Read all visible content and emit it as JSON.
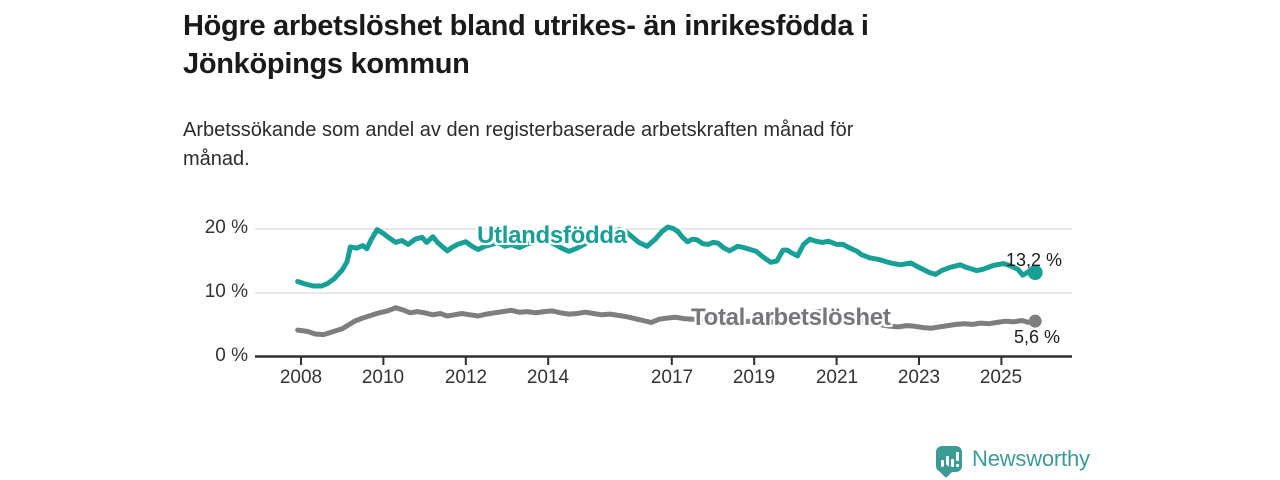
{
  "header": {
    "title_lines": [
      "Högre arbetslöshet bland utrikes- än inrikesfödda i",
      "Jönköpings kommun"
    ],
    "subtitle_lines": [
      "Arbetssökande som andel av den registerbaserade arbetskraften månad för",
      "månad."
    ]
  },
  "chart_data": {
    "type": "line",
    "title": "Högre arbetslöshet bland utrikes- än inrikesfödda i Jönköpings kommun",
    "subtitle": "Arbetssökande som andel av den registerbaserade arbetskraften månad för månad.",
    "unit": "%",
    "grid": "horizontal-only",
    "x_range_years": [
      2007.9,
      2025.9
    ],
    "y_axis": {
      "range": [
        0,
        21.5
      ],
      "ticks": [
        {
          "value": 20,
          "label": "20 %"
        },
        {
          "value": 10,
          "label": "10 %"
        },
        {
          "value": 0,
          "label": "0 %"
        }
      ]
    },
    "x_axis": {
      "ticks": [
        {
          "year": 2008,
          "label": "2008"
        },
        {
          "year": 2010,
          "label": "2010"
        },
        {
          "year": 2012,
          "label": "2012"
        },
        {
          "year": 2014,
          "label": "2014"
        },
        {
          "year": 2017,
          "label": "2017"
        },
        {
          "year": 2019,
          "label": "2019"
        },
        {
          "year": 2021,
          "label": "2021"
        },
        {
          "year": 2023,
          "label": "2023"
        },
        {
          "year": 2025,
          "label": "2025"
        }
      ]
    },
    "series": [
      {
        "name": "Total arbetslöshet",
        "color": "#7e7e7e",
        "end_value": 5.6,
        "end_label": "5,6 %",
        "points": [
          [
            2007.92,
            4.2
          ],
          [
            2008.15,
            4.0
          ],
          [
            2008.35,
            3.6
          ],
          [
            2008.55,
            3.5
          ],
          [
            2008.75,
            3.9
          ],
          [
            2009.0,
            4.4
          ],
          [
            2009.15,
            5.0
          ],
          [
            2009.3,
            5.6
          ],
          [
            2009.5,
            6.1
          ],
          [
            2009.7,
            6.5
          ],
          [
            2009.9,
            6.9
          ],
          [
            2010.1,
            7.2
          ],
          [
            2010.3,
            7.7
          ],
          [
            2010.5,
            7.3
          ],
          [
            2010.65,
            6.9
          ],
          [
            2010.82,
            7.1
          ],
          [
            2011.0,
            6.9
          ],
          [
            2011.2,
            6.6
          ],
          [
            2011.38,
            6.8
          ],
          [
            2011.55,
            6.4
          ],
          [
            2011.72,
            6.6
          ],
          [
            2011.9,
            6.8
          ],
          [
            2012.1,
            6.6
          ],
          [
            2012.3,
            6.4
          ],
          [
            2012.5,
            6.7
          ],
          [
            2012.7,
            6.9
          ],
          [
            2012.9,
            7.1
          ],
          [
            2013.1,
            7.3
          ],
          [
            2013.3,
            7.0
          ],
          [
            2013.5,
            7.1
          ],
          [
            2013.7,
            6.9
          ],
          [
            2013.9,
            7.1
          ],
          [
            2014.1,
            7.2
          ],
          [
            2014.3,
            6.9
          ],
          [
            2014.5,
            6.7
          ],
          [
            2014.7,
            6.8
          ],
          [
            2014.9,
            7.0
          ],
          [
            2015.1,
            6.8
          ],
          [
            2015.3,
            6.6
          ],
          [
            2015.5,
            6.7
          ],
          [
            2015.7,
            6.5
          ],
          [
            2015.9,
            6.3
          ],
          [
            2016.1,
            6.0
          ],
          [
            2016.3,
            5.7
          ],
          [
            2016.5,
            5.4
          ],
          [
            2016.7,
            5.9
          ],
          [
            2016.9,
            6.1
          ],
          [
            2017.1,
            6.2
          ],
          [
            2017.3,
            6.0
          ],
          [
            2017.5,
            5.9
          ],
          [
            2017.8,
            5.8
          ],
          [
            2018.0,
            5.9
          ],
          [
            2018.3,
            5.7
          ],
          [
            2018.6,
            5.5
          ],
          [
            2018.9,
            5.6
          ],
          [
            2019.2,
            5.4
          ],
          [
            2019.5,
            5.5
          ],
          [
            2019.8,
            5.7
          ],
          [
            2020.1,
            6.0
          ],
          [
            2020.4,
            6.9
          ],
          [
            2020.6,
            7.1
          ],
          [
            2020.9,
            6.8
          ],
          [
            2021.1,
            6.5
          ],
          [
            2021.4,
            6.1
          ],
          [
            2021.7,
            5.7
          ],
          [
            2021.9,
            5.3
          ],
          [
            2022.1,
            5.0
          ],
          [
            2022.3,
            4.8
          ],
          [
            2022.5,
            4.7
          ],
          [
            2022.7,
            4.9
          ],
          [
            2022.9,
            4.8
          ],
          [
            2023.1,
            4.6
          ],
          [
            2023.3,
            4.5
          ],
          [
            2023.5,
            4.7
          ],
          [
            2023.7,
            4.9
          ],
          [
            2023.9,
            5.1
          ],
          [
            2024.1,
            5.2
          ],
          [
            2024.3,
            5.1
          ],
          [
            2024.5,
            5.3
          ],
          [
            2024.7,
            5.2
          ],
          [
            2024.9,
            5.4
          ],
          [
            2025.1,
            5.6
          ],
          [
            2025.3,
            5.5
          ],
          [
            2025.5,
            5.7
          ],
          [
            2025.65,
            5.4
          ],
          [
            2025.82,
            5.6
          ]
        ]
      },
      {
        "name": "Utlandsfödda",
        "color": "#18a096",
        "end_value": 13.2,
        "end_label": "13,2 %",
        "points": [
          [
            2007.92,
            11.8
          ],
          [
            2008.1,
            11.4
          ],
          [
            2008.3,
            11.1
          ],
          [
            2008.5,
            11.1
          ],
          [
            2008.65,
            11.5
          ],
          [
            2008.8,
            12.2
          ],
          [
            2009.0,
            13.6
          ],
          [
            2009.12,
            14.9
          ],
          [
            2009.2,
            17.2
          ],
          [
            2009.35,
            17.0
          ],
          [
            2009.5,
            17.4
          ],
          [
            2009.6,
            16.9
          ],
          [
            2009.7,
            18.3
          ],
          [
            2009.85,
            19.9
          ],
          [
            2010.0,
            19.3
          ],
          [
            2010.12,
            18.7
          ],
          [
            2010.3,
            17.9
          ],
          [
            2010.45,
            18.2
          ],
          [
            2010.6,
            17.6
          ],
          [
            2010.77,
            18.4
          ],
          [
            2010.94,
            18.7
          ],
          [
            2011.05,
            17.9
          ],
          [
            2011.2,
            18.8
          ],
          [
            2011.3,
            18.0
          ],
          [
            2011.42,
            17.3
          ],
          [
            2011.55,
            16.6
          ],
          [
            2011.66,
            17.1
          ],
          [
            2011.8,
            17.6
          ],
          [
            2012.0,
            18.0
          ],
          [
            2012.15,
            17.3
          ],
          [
            2012.3,
            16.8
          ],
          [
            2012.46,
            17.3
          ],
          [
            2012.63,
            17.6
          ],
          [
            2012.78,
            17.9
          ],
          [
            2012.95,
            17.3
          ],
          [
            2013.1,
            17.6
          ],
          [
            2013.3,
            17.1
          ],
          [
            2013.5,
            17.7
          ],
          [
            2013.7,
            18.0
          ],
          [
            2013.9,
            18.2
          ],
          [
            2014.1,
            17.8
          ],
          [
            2014.3,
            17.1
          ],
          [
            2014.5,
            16.5
          ],
          [
            2014.7,
            17.0
          ],
          [
            2014.9,
            17.7
          ],
          [
            2015.1,
            18.3
          ],
          [
            2015.3,
            18.9
          ],
          [
            2015.5,
            19.5
          ],
          [
            2015.72,
            19.9
          ],
          [
            2015.9,
            19.5
          ],
          [
            2016.05,
            18.7
          ],
          [
            2016.2,
            17.9
          ],
          [
            2016.4,
            17.3
          ],
          [
            2016.6,
            18.4
          ],
          [
            2016.76,
            19.6
          ],
          [
            2016.9,
            20.3
          ],
          [
            2017.03,
            20.1
          ],
          [
            2017.15,
            19.6
          ],
          [
            2017.26,
            18.7
          ],
          [
            2017.38,
            18.0
          ],
          [
            2017.5,
            18.4
          ],
          [
            2017.62,
            18.3
          ],
          [
            2017.75,
            17.7
          ],
          [
            2017.88,
            17.6
          ],
          [
            2018.0,
            17.9
          ],
          [
            2018.12,
            17.8
          ],
          [
            2018.25,
            17.1
          ],
          [
            2018.4,
            16.6
          ],
          [
            2018.6,
            17.3
          ],
          [
            2018.75,
            17.1
          ],
          [
            2018.9,
            16.8
          ],
          [
            2019.05,
            16.5
          ],
          [
            2019.2,
            15.7
          ],
          [
            2019.4,
            14.8
          ],
          [
            2019.55,
            15.0
          ],
          [
            2019.7,
            16.7
          ],
          [
            2019.8,
            16.7
          ],
          [
            2019.9,
            16.3
          ],
          [
            2020.05,
            15.8
          ],
          [
            2020.2,
            17.6
          ],
          [
            2020.35,
            18.4
          ],
          [
            2020.5,
            18.1
          ],
          [
            2020.65,
            17.9
          ],
          [
            2020.8,
            18.1
          ],
          [
            2021.0,
            17.6
          ],
          [
            2021.15,
            17.6
          ],
          [
            2021.3,
            17.1
          ],
          [
            2021.5,
            16.5
          ],
          [
            2021.6,
            16.0
          ],
          [
            2021.8,
            15.5
          ],
          [
            2022.05,
            15.2
          ],
          [
            2022.3,
            14.7
          ],
          [
            2022.55,
            14.4
          ],
          [
            2022.8,
            14.7
          ],
          [
            2023.0,
            14.0
          ],
          [
            2023.25,
            13.2
          ],
          [
            2023.4,
            12.9
          ],
          [
            2023.55,
            13.5
          ],
          [
            2023.75,
            14.0
          ],
          [
            2024.0,
            14.4
          ],
          [
            2024.15,
            14.0
          ],
          [
            2024.4,
            13.5
          ],
          [
            2024.55,
            13.7
          ],
          [
            2024.8,
            14.3
          ],
          [
            2025.05,
            14.6
          ],
          [
            2025.2,
            14.3
          ],
          [
            2025.4,
            13.7
          ],
          [
            2025.52,
            12.8
          ],
          [
            2025.68,
            13.4
          ],
          [
            2025.82,
            13.2
          ]
        ]
      }
    ],
    "legend_position": "inline-labels",
    "colors": {
      "axis": "#2f2f2f",
      "grid": "#dadada",
      "text": "#333333"
    }
  },
  "footer": {
    "brand": "Newsworthy",
    "brand_color": "#3d9b95",
    "logo_icon": "bar-chart-speech-bubble-icon"
  }
}
